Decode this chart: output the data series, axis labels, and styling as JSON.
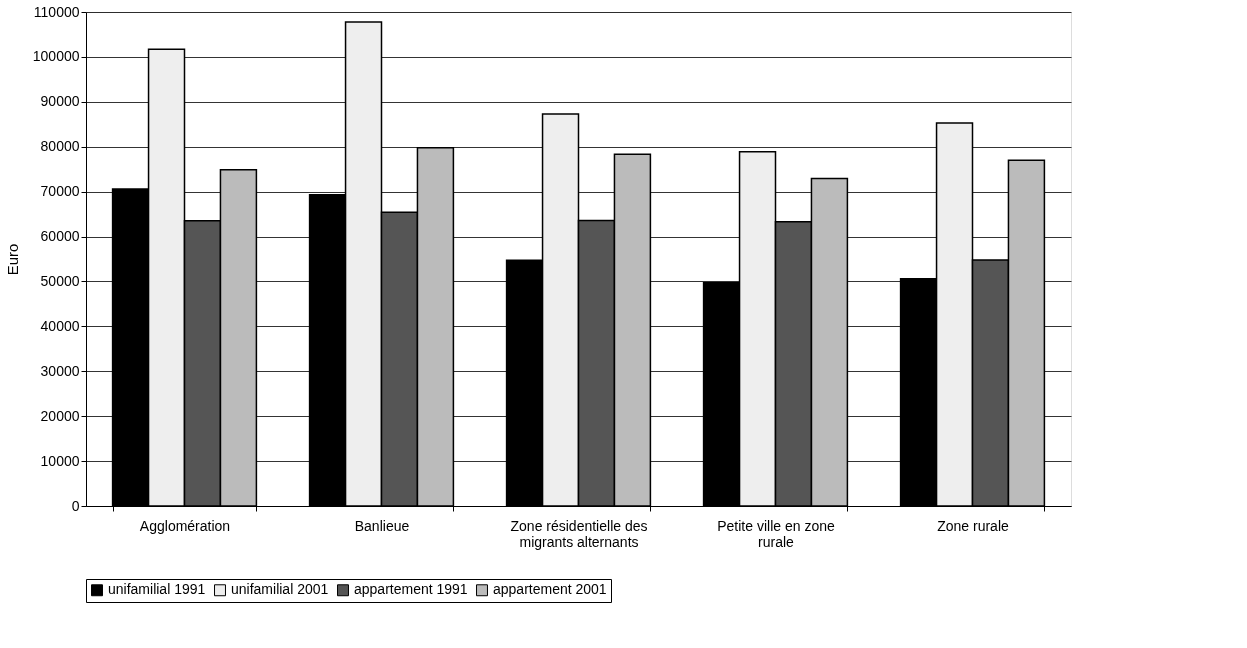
{
  "chart_data": {
    "type": "bar",
    "ylabel": "Euro",
    "categories": [
      "Agglomération",
      "Banlieue",
      "Zone résidentielle des migrants alternants",
      "Petite ville en zone rurale",
      "Zone rurale"
    ],
    "series": [
      {
        "name": "unifamilial 1991",
        "color": "#000000",
        "values": [
          70600,
          69300,
          54700,
          49700,
          50600
        ]
      },
      {
        "name": "unifamilial 2001",
        "color": "#eeeeee",
        "values": [
          101700,
          107800,
          87300,
          78900,
          85300
        ]
      },
      {
        "name": "appartement 1991",
        "color": "#555555",
        "values": [
          63500,
          65400,
          63600,
          63300,
          54800
        ]
      },
      {
        "name": "appartement 2001",
        "color": "#bbbbbb",
        "values": [
          74900,
          79800,
          78300,
          72900,
          77000
        ]
      }
    ],
    "ylim": [
      0,
      110000
    ],
    "yticks": [
      0,
      10000,
      20000,
      30000,
      40000,
      50000,
      60000,
      70000,
      80000,
      90000,
      100000,
      110000
    ],
    "grid": "y",
    "legend": "bottom"
  }
}
